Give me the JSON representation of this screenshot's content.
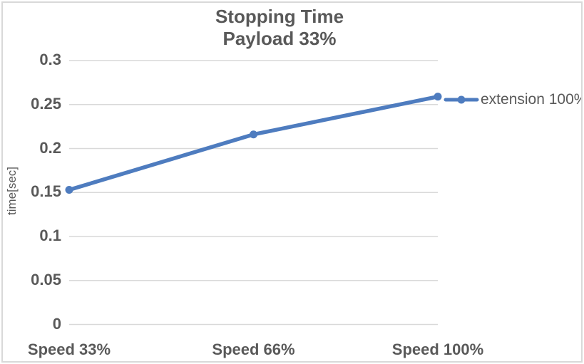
{
  "chart_data": {
    "type": "line",
    "title": "Stopping Time",
    "subtitle": "Payload 33%",
    "ylabel": "time[sec]",
    "categories": [
      "Speed 33%",
      "Speed 66%",
      "Speed 100%"
    ],
    "series": [
      {
        "name": "extension 100%",
        "values": [
          0.153,
          0.216,
          0.259
        ]
      }
    ],
    "ylim": [
      0,
      0.3
    ],
    "ytick_labels": [
      "0",
      "0.05",
      "0.1",
      "0.15",
      "0.2",
      "0.25",
      "0.3"
    ],
    "grid": true,
    "legend_position": "right of last data point",
    "colors": {
      "series": "#4E7CBF",
      "grid": "#D9D9D9",
      "text": "#595959",
      "border": "#D9D9D9",
      "background": "#FFFFFF"
    }
  }
}
